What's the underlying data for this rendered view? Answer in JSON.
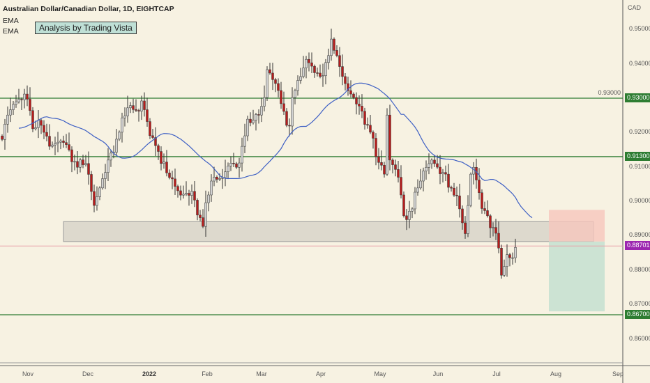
{
  "header": {
    "symbol": "Australian Dollar/Canadian Dollar, 1D, EIGHTCAP",
    "ema1": "EMA",
    "ema2": "EMA",
    "note": "Analysis by Trading Vista"
  },
  "colors": {
    "background": "#f7f2e2",
    "up": "#d2d2d2",
    "down": "#b71c1c",
    "ema": "#3d5fc4",
    "level": "#2e7d32",
    "current": "#9c27b0",
    "zone": "#d4d0c6",
    "risk": "#f6c6bd",
    "reward": "#c4e1d0"
  },
  "chart_data": {
    "type": "candlestick",
    "title": "Australian Dollar/Canadian Dollar, 1D, EIGHTCAP",
    "ylabel": "CAD",
    "ylim": [
      0.855,
      0.952
    ],
    "y_ticks": [
      "0.95000",
      "0.94000",
      "0.93000",
      "0.92000",
      "0.91000",
      "0.90000",
      "0.89000",
      "0.88000",
      "0.87000",
      "0.86000"
    ],
    "x_ticks": [
      "Nov",
      "Dec",
      "2022",
      "Feb",
      "Mar",
      "Apr",
      "May",
      "Jun",
      "Jul",
      "Aug",
      "Sep"
    ],
    "close_path": [
      [
        0,
        0.918
      ],
      [
        2,
        0.9251
      ],
      [
        4,
        0.9282
      ],
      [
        8,
        0.9312
      ],
      [
        10,
        0.9282
      ],
      [
        11,
        0.9211
      ],
      [
        14,
        0.9221
      ],
      [
        17,
        0.916
      ],
      [
        22,
        0.918
      ],
      [
        24,
        0.915
      ],
      [
        27,
        0.9099
      ],
      [
        30,
        0.911
      ],
      [
        33,
        0.8988
      ],
      [
        35,
        0.9039
      ],
      [
        38,
        0.912
      ],
      [
        42,
        0.9201
      ],
      [
        45,
        0.9272
      ],
      [
        49,
        0.9262
      ],
      [
        50,
        0.9292
      ],
      [
        52,
        0.9241
      ],
      [
        53,
        0.9191
      ],
      [
        55,
        0.918
      ],
      [
        57,
        0.911
      ],
      [
        60,
        0.9069
      ],
      [
        64,
        0.9018
      ],
      [
        68,
        0.9029
      ],
      [
        70,
        0.8978
      ],
      [
        72,
        0.8927
      ],
      [
        73,
        0.8978
      ],
      [
        75,
        0.9059
      ],
      [
        79,
        0.9069
      ],
      [
        82,
        0.912
      ],
      [
        84,
        0.9099
      ],
      [
        88,
        0.9221
      ],
      [
        92,
        0.9251
      ],
      [
        94,
        0.9302
      ],
      [
        95,
        0.9383
      ],
      [
        97,
        0.9363
      ],
      [
        100,
        0.9302
      ],
      [
        102,
        0.9221
      ],
      [
        103,
        0.9201
      ],
      [
        104,
        0.9302
      ],
      [
        107,
        0.9363
      ],
      [
        109,
        0.9413
      ],
      [
        112,
        0.9383
      ],
      [
        114,
        0.9363
      ],
      [
        117,
        0.9424
      ],
      [
        118,
        0.9454
      ],
      [
        120,
        0.9424
      ],
      [
        121,
        0.9383
      ],
      [
        122,
        0.9363
      ],
      [
        124,
        0.9322
      ],
      [
        127,
        0.9292
      ],
      [
        129,
        0.9262
      ],
      [
        132,
        0.9201
      ],
      [
        134,
        0.913
      ],
      [
        137,
        0.9079
      ],
      [
        138,
        0.9251
      ],
      [
        139,
        0.912
      ],
      [
        142,
        0.9079
      ],
      [
        144,
        0.8958
      ],
      [
        147,
        0.8978
      ],
      [
        149,
        0.9039
      ],
      [
        152,
        0.9099
      ],
      [
        154,
        0.912
      ],
      [
        157,
        0.9089
      ],
      [
        159,
        0.9079
      ],
      [
        162,
        0.9018
      ],
      [
        164,
        0.8978
      ],
      [
        166,
        0.8897
      ],
      [
        168,
        0.9079
      ],
      [
        169,
        0.9099
      ],
      [
        172,
        0.8988
      ],
      [
        174,
        0.8958
      ],
      [
        177,
        0.8907
      ],
      [
        179,
        0.8785
      ],
      [
        181,
        0.8836
      ],
      [
        183,
        0.8836
      ],
      [
        184,
        0.8866
      ]
    ],
    "levels": [
      {
        "price": 0.93,
        "label": "0.93000"
      },
      {
        "price": 0.913,
        "label": "0.91300"
      },
      {
        "price": 0.867,
        "label": "0.86700"
      }
    ],
    "current_price": {
      "price": 0.88701,
      "label": "0.88701"
    },
    "zone": {
      "top": 0.8941,
      "bottom": 0.8883,
      "from_index": 22,
      "to_index": 212
    },
    "position": {
      "stop": 0.8975,
      "entry": 0.8883,
      "target": 0.868,
      "from_index": 196,
      "to_index": 216
    }
  }
}
